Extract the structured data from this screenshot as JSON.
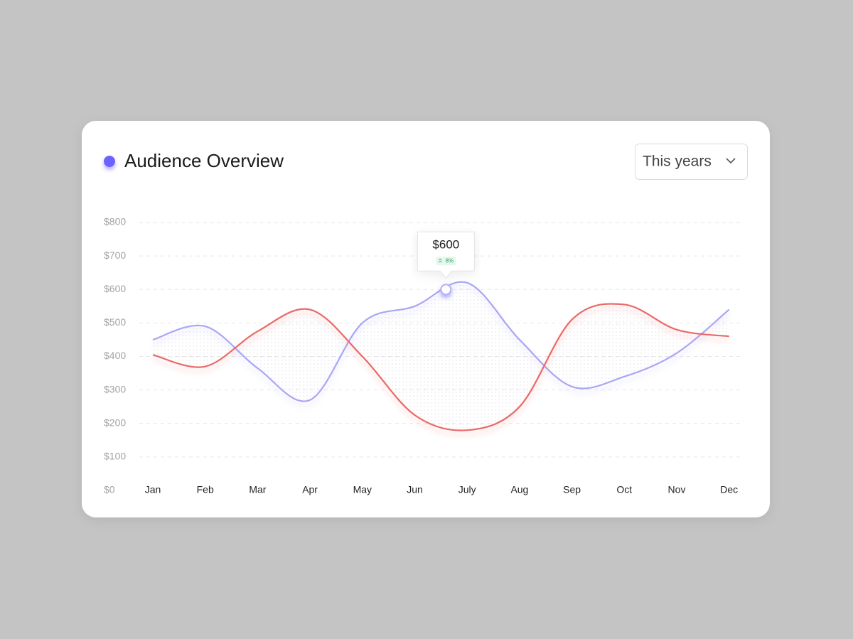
{
  "chart_data": {
    "type": "line",
    "title": "Audience Overview",
    "period": "This years",
    "categories": [
      "Jan",
      "Feb",
      "Mar",
      "Apr",
      "May",
      "Jun",
      "July",
      "Aug",
      "Sep",
      "Oct",
      "Nov",
      "Dec"
    ],
    "series": [
      {
        "color": "#a9a6f5",
        "values": [
          450,
          490,
          365,
          270,
          500,
          550,
          620,
          450,
          310,
          340,
          410,
          540
        ]
      },
      {
        "color": "#e96a68",
        "values": [
          405,
          370,
          475,
          540,
          400,
          225,
          180,
          250,
          510,
          555,
          480,
          460
        ]
      }
    ],
    "ylim": [
      0,
      800
    ],
    "yticks": [
      {
        "value": 0,
        "label": "$0"
      },
      {
        "value": 100,
        "label": "$100"
      },
      {
        "value": 200,
        "label": "$200"
      },
      {
        "value": 300,
        "label": "$300"
      },
      {
        "value": 400,
        "label": "$400"
      },
      {
        "value": 500,
        "label": "$500"
      },
      {
        "value": 600,
        "label": "$600"
      },
      {
        "value": 700,
        "label": "$700"
      },
      {
        "value": 800,
        "label": "$800"
      }
    ],
    "grid": true,
    "annotation": {
      "value": 600,
      "label": "$600",
      "change": "8%"
    }
  }
}
